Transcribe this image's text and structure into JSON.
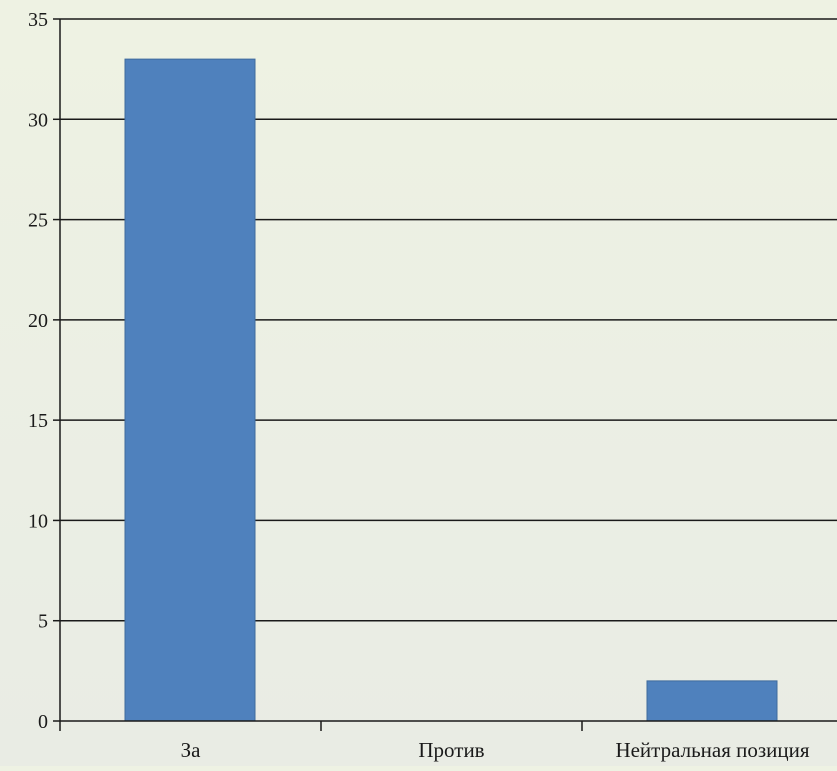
{
  "chart_data": {
    "type": "bar",
    "title": "",
    "xlabel": "",
    "ylabel": "",
    "categories": [
      "За",
      "Против",
      "Нейтральная позиция"
    ],
    "values": [
      33,
      0,
      2
    ],
    "ylim": [
      0,
      35
    ],
    "yticks": [
      0,
      5,
      10,
      15,
      20,
      25,
      30,
      35
    ],
    "grid": true,
    "legend": "none",
    "colors": {
      "bar_fill": "#4f81bd",
      "bar_stroke": "#3f6a9c",
      "axis": "#1a1a1a",
      "gridline": "#1a1a1a"
    }
  }
}
